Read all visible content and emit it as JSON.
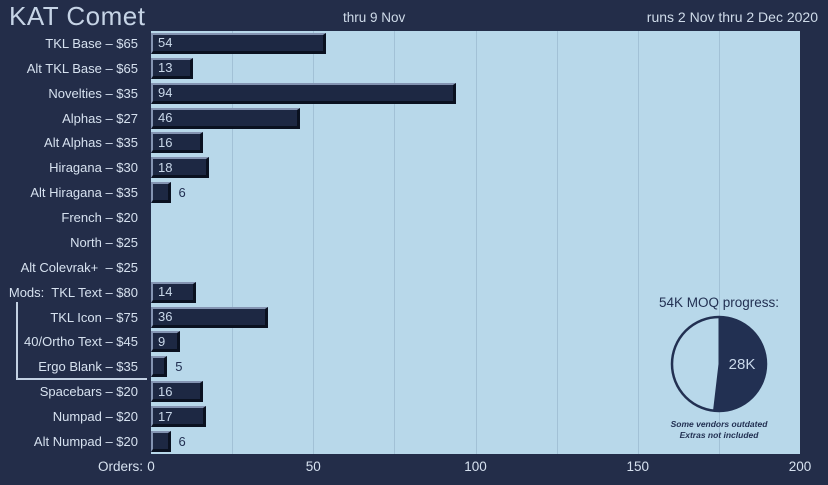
{
  "header": {
    "title": "KAT Comet",
    "status": "thru 9 Nov",
    "date_range": "runs 2 Nov thru 2 Dec 2020"
  },
  "axis": {
    "label": "Orders:",
    "ticks": [
      0,
      50,
      100,
      150,
      200
    ],
    "minor_grid_step": 25,
    "max": 200
  },
  "chart_data": {
    "type": "bar",
    "orientation": "horizontal",
    "title": "KAT Comet",
    "xlabel": "Orders",
    "xlim": [
      0,
      200
    ],
    "grid": "vertical, every 25 units",
    "categories": [
      "TKL Base – $65",
      "Alt TKL Base – $65",
      "Novelties – $35",
      "Alphas – $27",
      "Alt Alphas – $35",
      "Hiragana – $30",
      "Alt Hiragana – $35",
      "French – $20",
      "North – $25",
      "Alt Colevrak+  – $25",
      "Mods:  TKL Text – $80",
      "TKL Icon – $75",
      "40/Ortho Text – $45",
      "Ergo Blank – $35",
      "Spacebars – $20",
      "Numpad – $20",
      "Alt Numpad – $20"
    ],
    "values": [
      54,
      13,
      94,
      46,
      16,
      18,
      6,
      0,
      0,
      0,
      14,
      36,
      9,
      5,
      16,
      17,
      6
    ],
    "mods_group_members": [
      "TKL Icon – $75",
      "40/Ortho Text – $45",
      "Ergo Blank – $35"
    ]
  },
  "pie": {
    "title": "54K MOQ progress:",
    "current": 28,
    "total": 54,
    "progress_label": "28K",
    "footnotes": [
      "Some vendors outdated",
      "Extras not included"
    ]
  },
  "colors": {
    "background": "#232d49",
    "plot_bg": "#b8d8ea",
    "gridline": "#a2c1d6",
    "bar_fill": "#1d2843",
    "bar_bevel_light": "#8494b2",
    "bar_bevel_dark": "#0a1120",
    "title_text": "#c6d4e6",
    "header_text": "#cfdbe9",
    "text_light": "#d6e1ef",
    "value_text_light": "#c9d8ea",
    "text_dark": "#223052",
    "bracket": "#c3d1e3"
  }
}
